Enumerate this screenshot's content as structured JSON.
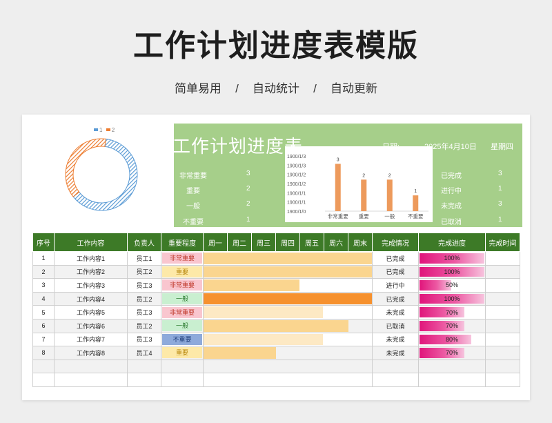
{
  "page": {
    "title": "工作计划进度表模版",
    "subtitle": "简单易用   /   自动统计   /   自动更新"
  },
  "legend": {
    "item1": "1",
    "item2": "2",
    "color1": "#5b9bd5",
    "color2": "#ed7d31"
  },
  "banner": {
    "title": "工作计划进度表",
    "date_label": "日期:",
    "date_value": "2025年4月10日",
    "weekday": "星期四",
    "importance_stats": [
      {
        "label": "非常重要",
        "value": "3"
      },
      {
        "label": "重要",
        "value": "2"
      },
      {
        "label": "一般",
        "value": "2"
      },
      {
        "label": "不重要",
        "value": "1"
      }
    ],
    "status_stats": [
      {
        "label": "已完成",
        "value": "3"
      },
      {
        "label": "进行中",
        "value": "1"
      },
      {
        "label": "未完成",
        "value": "3"
      },
      {
        "label": "已取消",
        "value": "1"
      }
    ]
  },
  "chart_data": {
    "type": "bar",
    "categories": [
      "非常重要",
      "重要",
      "一般",
      "不重要"
    ],
    "values": [
      3,
      2,
      2,
      1
    ],
    "y_tick_labels": [
      "1900/1/3",
      "1900/1/3",
      "1900/1/2",
      "1900/1/2",
      "1900/1/1",
      "1900/1/1",
      "1900/1/0"
    ],
    "ylim": [
      0,
      3.5
    ],
    "bar_color": "#ed9a5c",
    "grid": false
  },
  "donut_data": {
    "type": "pie",
    "values": [
      5,
      3
    ],
    "colors": [
      "#5b9bd5",
      "#ed7d31"
    ]
  },
  "table": {
    "headers": [
      "序号",
      "工作内容",
      "负责人",
      "重要程度",
      "周一",
      "周二",
      "周三",
      "周四",
      "周五",
      "周六",
      "周末",
      "完成情况",
      "完成进度",
      "完成时间"
    ],
    "rows": [
      {
        "no": "1",
        "task": "工作内容1",
        "owner": "员工1",
        "importance": "非常重要",
        "gantt": 1.0,
        "status": "已完成",
        "progress": "100%"
      },
      {
        "no": "2",
        "task": "工作内容2",
        "owner": "员工2",
        "importance": "重要",
        "gantt": 1.0,
        "status": "已完成",
        "progress": "100%"
      },
      {
        "no": "3",
        "task": "工作内容3",
        "owner": "员工3",
        "importance": "非常重要",
        "gantt": 0.57,
        "status": "进行中",
        "progress": "50%"
      },
      {
        "no": "4",
        "task": "工作内容4",
        "owner": "员工2",
        "importance": "一般",
        "gantt": 1.0,
        "status": "已完成",
        "progress": "100%"
      },
      {
        "no": "5",
        "task": "工作内容5",
        "owner": "员工3",
        "importance": "非常重要",
        "gantt": 0.71,
        "status": "未完成",
        "progress": "70%"
      },
      {
        "no": "6",
        "task": "工作内容6",
        "owner": "员工2",
        "importance": "一般",
        "gantt": 0.86,
        "status": "已取消",
        "progress": "70%"
      },
      {
        "no": "7",
        "task": "工作内容7",
        "owner": "员工3",
        "importance": "不重要",
        "gantt": 0.71,
        "status": "未完成",
        "progress": "80%"
      },
      {
        "no": "8",
        "task": "工作内容8",
        "owner": "员工4",
        "importance": "重要",
        "gantt": 0.43,
        "status": "未完成",
        "progress": "70%"
      }
    ],
    "gantt_colors": [
      "#fad58f",
      "#fad58f",
      "#fad58f",
      "#f6912e",
      "#fde9c4",
      "#fad58f",
      "#fde9c4",
      "#fad58f"
    ],
    "importance_styles": {
      "非常重要": {
        "bg": "#f9c6cf",
        "fg": "#c0392b"
      },
      "重要": {
        "bg": "#fde9a8",
        "fg": "#b7860b"
      },
      "一般": {
        "bg": "#c9efd0",
        "fg": "#2e7d32"
      },
      "不重要": {
        "bg": "#8eaadb",
        "fg": "#1f3d7a"
      }
    },
    "progress_color": "#e0157b"
  }
}
